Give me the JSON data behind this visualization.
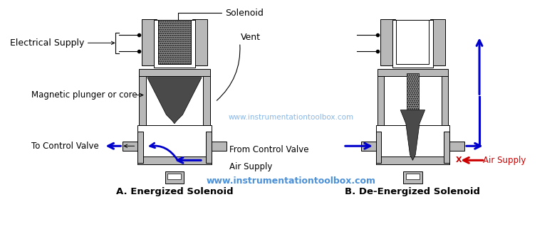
{
  "background_color": "#ffffff",
  "watermark": "www.instrumentationtoolbox.com",
  "watermark_color": "#4a90d9",
  "label_solenoid": "Solenoid",
  "label_vent": "Vent",
  "label_electrical": "Electrical Supply",
  "label_magnetic": "Magnetic plunger or core",
  "label_to_control": "To Control Valve",
  "label_from_control": "From Control Valve",
  "label_air_supply_a": "Air Supply",
  "label_air_supply_b": "Air Supply",
  "label_a": "A. Energized Solenoid",
  "label_b": "B. De-Energized Solenoid",
  "gray_light": "#b8b8b8",
  "gray_medium": "#909090",
  "gray_coil": "#989898",
  "dark_plunger": "#4a4a4a",
  "blue_arrow": "#0000cc",
  "red_arrow": "#cc0000",
  "watermark_bottom": "www.instrumentationtoolbox.com"
}
